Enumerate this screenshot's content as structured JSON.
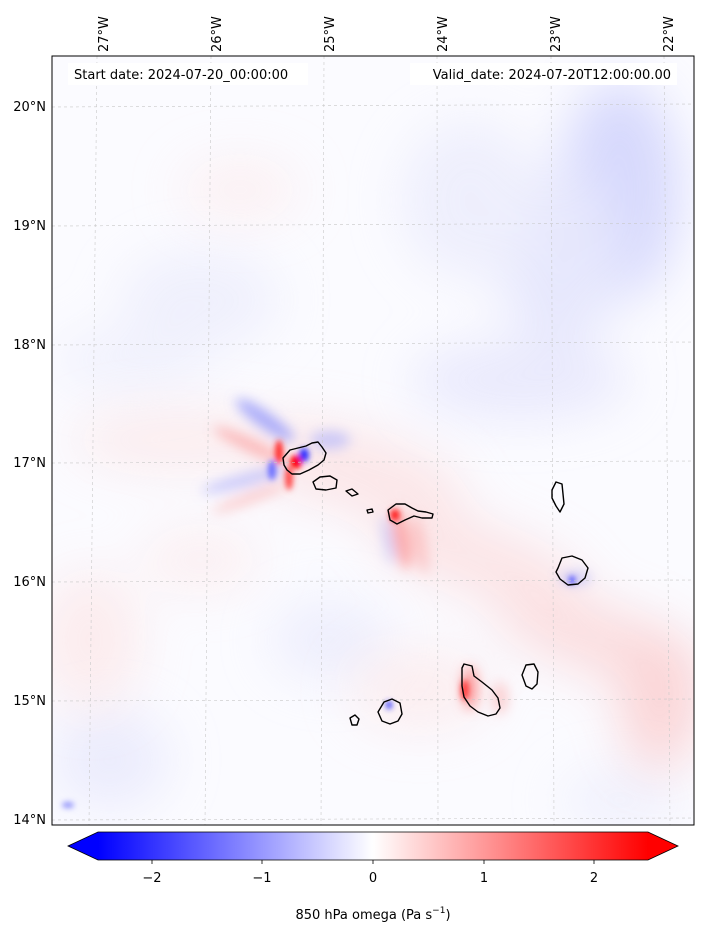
{
  "map": {
    "start_label": "Start date: 2024-07-20_00:00:00",
    "valid_label": "Valid_date: 2024-07-20T12:00:00.00",
    "lon_ticks": [
      "27°W",
      "26°W",
      "25°W",
      "24°W",
      "23°W",
      "22°W"
    ],
    "lat_ticks": [
      "20°N",
      "19°N",
      "18°N",
      "17°N",
      "16°N",
      "15°N",
      "14°N"
    ],
    "colorbar": {
      "ticks": [
        "−2",
        "−1",
        "0",
        "1",
        "2"
      ],
      "label_text": "850 hPa omega (Pa s",
      "label_sup": "−1",
      "label_close": ")",
      "vmin": -2.6,
      "vmax": 2.6,
      "colormap": "bwr",
      "extend": "both"
    },
    "colors": {
      "negative": "#0000ff",
      "zero": "#ffffff",
      "positive": "#ff0000",
      "coastline": "#000000",
      "grid": "#c8c8c8"
    }
  }
}
